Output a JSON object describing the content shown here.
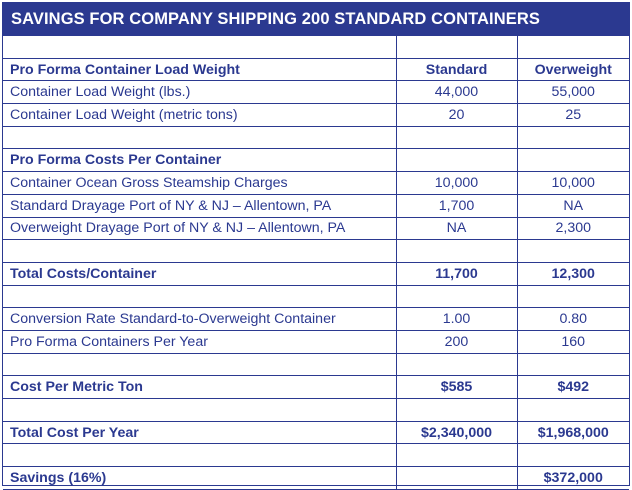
{
  "title": "SAVINGS FOR COMPANY SHIPPING 200 STANDARD CONTAINERS",
  "columns": {
    "standard": "Standard",
    "overweight": "Overweight"
  },
  "rows": [
    {
      "label": "",
      "std": "",
      "ow": ""
    },
    {
      "label": "Pro Forma Container Load Weight",
      "std": "Standard",
      "ow": "Overweight"
    },
    {
      "label": "Container Load Weight (lbs.)",
      "std": "44,000",
      "ow": "55,000"
    },
    {
      "label": "Container Load Weight (metric tons)",
      "std": "20",
      "ow": "25"
    },
    {
      "label": "",
      "std": "",
      "ow": ""
    },
    {
      "label": "Pro Forma Costs Per Container",
      "std": "",
      "ow": ""
    },
    {
      "label": "Container Ocean Gross Steamship Charges",
      "std": "10,000",
      "ow": "10,000"
    },
    {
      "label": "Standard Drayage Port of NY & NJ – Allentown, PA",
      "std": "1,700",
      "ow": "NA"
    },
    {
      "label": "Overweight Drayage Port of NY & NJ – Allentown, PA",
      "std": "NA",
      "ow": "2,300"
    },
    {
      "label": "",
      "std": "",
      "ow": ""
    },
    {
      "label": "Total Costs/Container",
      "std": "11,700",
      "ow": "12,300"
    },
    {
      "label": "",
      "std": "",
      "ow": ""
    },
    {
      "label": "Conversion Rate Standard-to-Overweight Container",
      "std": "1.00",
      "ow": "0.80"
    },
    {
      "label": "Pro Forma Containers Per Year",
      "std": "200",
      "ow": "160"
    },
    {
      "label": "",
      "std": "",
      "ow": ""
    },
    {
      "label": "Cost Per Metric Ton",
      "std": "$585",
      "ow": "$492"
    },
    {
      "label": "",
      "std": "",
      "ow": ""
    },
    {
      "label": "Total Cost Per Year",
      "std": "$2,340,000",
      "ow": "$1,968,000"
    },
    {
      "label": "",
      "std": "",
      "ow": ""
    },
    {
      "label": "Savings (16%)",
      "std": "",
      "ow": "$372,000"
    }
  ]
}
